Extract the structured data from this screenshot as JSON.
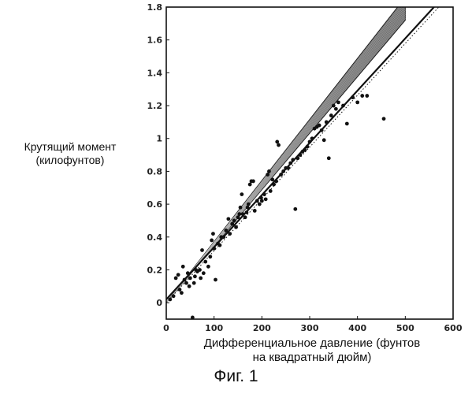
{
  "chart_data": {
    "type": "scatter",
    "title": "",
    "xlabel_line1": "Дифференциальное давление (фунтов",
    "xlabel_line2": "на квадратный дюйм)",
    "ylabel_line1": "Крутящий момент",
    "ylabel_line2": "(килофунтов)",
    "xlim": [
      0,
      600
    ],
    "ylim": [
      -0.1,
      1.8
    ],
    "x_ticks": [
      "0",
      "100",
      "200",
      "300",
      "400",
      "500",
      "600"
    ],
    "x_tick_values": [
      0,
      100,
      200,
      300,
      400,
      500,
      600
    ],
    "y_ticks": [
      "0",
      "0.2",
      "0.4",
      "0.6",
      "0.8",
      "1",
      "1.2",
      "1.4",
      "1.6",
      "1.8"
    ],
    "y_tick_values": [
      0,
      0.2,
      0.4,
      0.6,
      0.8,
      1.0,
      1.2,
      1.4,
      1.6,
      1.8
    ],
    "grid": false,
    "band": {
      "x0": 0,
      "y0": 0.0,
      "x1": 500,
      "y1_upper": 1.86,
      "y1_lower": 1.72
    },
    "lines": [
      {
        "style": "solid",
        "x0": 0,
        "y0": 0.02,
        "x1": 560,
        "y1": 1.8
      },
      {
        "style": "dotted",
        "x0": 0,
        "y0": 0.0,
        "x1": 570,
        "y1": 1.8
      }
    ],
    "points": [
      [
        8,
        0.02
      ],
      [
        15,
        0.04
      ],
      [
        20,
        0.15
      ],
      [
        25,
        0.17
      ],
      [
        28,
        0.08
      ],
      [
        32,
        0.06
      ],
      [
        35,
        0.22
      ],
      [
        38,
        0.14
      ],
      [
        42,
        0.12
      ],
      [
        45,
        0.18
      ],
      [
        48,
        0.1
      ],
      [
        50,
        0.15
      ],
      [
        55,
        -0.09
      ],
      [
        58,
        0.12
      ],
      [
        60,
        0.16
      ],
      [
        62,
        0.2
      ],
      [
        65,
        0.19
      ],
      [
        70,
        0.2
      ],
      [
        72,
        0.15
      ],
      [
        75,
        0.32
      ],
      [
        78,
        0.18
      ],
      [
        82,
        0.25
      ],
      [
        88,
        0.22
      ],
      [
        92,
        0.28
      ],
      [
        95,
        0.38
      ],
      [
        98,
        0.42
      ],
      [
        100,
        0.33
      ],
      [
        103,
        0.14
      ],
      [
        108,
        0.36
      ],
      [
        112,
        0.35
      ],
      [
        115,
        0.4
      ],
      [
        120,
        0.4
      ],
      [
        125,
        0.44
      ],
      [
        130,
        0.51
      ],
      [
        133,
        0.42
      ],
      [
        138,
        0.48
      ],
      [
        142,
        0.5
      ],
      [
        146,
        0.46
      ],
      [
        150,
        0.52
      ],
      [
        153,
        0.54
      ],
      [
        155,
        0.58
      ],
      [
        158,
        0.66
      ],
      [
        160,
        0.54
      ],
      [
        165,
        0.52
      ],
      [
        168,
        0.55
      ],
      [
        170,
        0.58
      ],
      [
        172,
        0.6
      ],
      [
        175,
        0.72
      ],
      [
        178,
        0.74
      ],
      [
        182,
        0.74
      ],
      [
        185,
        0.56
      ],
      [
        190,
        0.62
      ],
      [
        195,
        0.6
      ],
      [
        198,
        0.64
      ],
      [
        200,
        0.62
      ],
      [
        205,
        0.66
      ],
      [
        208,
        0.63
      ],
      [
        212,
        0.78
      ],
      [
        215,
        0.8
      ],
      [
        218,
        0.68
      ],
      [
        222,
        0.75
      ],
      [
        225,
        0.72
      ],
      [
        230,
        0.74
      ],
      [
        232,
        0.98
      ],
      [
        235,
        0.96
      ],
      [
        240,
        0.78
      ],
      [
        245,
        0.8
      ],
      [
        250,
        0.82
      ],
      [
        255,
        0.82
      ],
      [
        260,
        0.85
      ],
      [
        265,
        0.87
      ],
      [
        270,
        0.57
      ],
      [
        275,
        0.88
      ],
      [
        280,
        0.9
      ],
      [
        285,
        0.92
      ],
      [
        290,
        0.93
      ],
      [
        295,
        0.95
      ],
      [
        300,
        0.98
      ],
      [
        305,
        1.0
      ],
      [
        310,
        1.06
      ],
      [
        315,
        1.07
      ],
      [
        320,
        1.08
      ],
      [
        325,
        1.05
      ],
      [
        330,
        0.99
      ],
      [
        335,
        1.1
      ],
      [
        340,
        0.88
      ],
      [
        345,
        1.14
      ],
      [
        350,
        1.2
      ],
      [
        355,
        1.18
      ],
      [
        360,
        1.22
      ],
      [
        370,
        1.2
      ],
      [
        378,
        1.09
      ],
      [
        390,
        1.25
      ],
      [
        400,
        1.22
      ],
      [
        410,
        1.26
      ],
      [
        420,
        1.26
      ],
      [
        455,
        1.12
      ]
    ]
  }
}
